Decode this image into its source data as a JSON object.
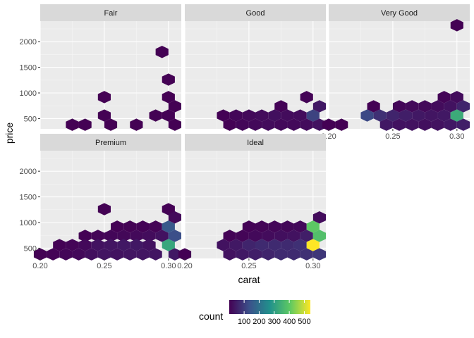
{
  "chart_data": {
    "type": "hexbin",
    "xlabel": "carat",
    "ylabel": "price",
    "xlim": [
      0.2,
      0.31
    ],
    "ylim": [
      300,
      2400
    ],
    "x_ticks": [
      0.2,
      0.25,
      0.3
    ],
    "x_tick_labels": [
      "0.20",
      "0.25",
      "0.30"
    ],
    "y_ticks": [
      500,
      1000,
      1500,
      2000
    ],
    "y_tick_labels": [
      "500",
      "1000",
      "1500",
      "2000"
    ],
    "legend": {
      "title": "count",
      "ticks": [
        100,
        200,
        300,
        400,
        500
      ],
      "tick_labels": [
        "100",
        "200",
        "300",
        "400",
        "500"
      ],
      "range": [
        1,
        540
      ],
      "placement": "bottom"
    },
    "panels": [
      {
        "name": "Fair",
        "hexes": [
          {
            "x": 0.225,
            "y": 380,
            "count": 2
          },
          {
            "x": 0.235,
            "y": 380,
            "count": 2
          },
          {
            "x": 0.25,
            "y": 920,
            "count": 2
          },
          {
            "x": 0.25,
            "y": 560,
            "count": 2
          },
          {
            "x": 0.255,
            "y": 380,
            "count": 2
          },
          {
            "x": 0.275,
            "y": 380,
            "count": 2
          },
          {
            "x": 0.29,
            "y": 560,
            "count": 2
          },
          {
            "x": 0.295,
            "y": 1800,
            "count": 2
          },
          {
            "x": 0.3,
            "y": 1260,
            "count": 2
          },
          {
            "x": 0.3,
            "y": 920,
            "count": 2
          },
          {
            "x": 0.3,
            "y": 560,
            "count": 4
          },
          {
            "x": 0.305,
            "y": 740,
            "count": 2
          },
          {
            "x": 0.305,
            "y": 380,
            "count": 2
          }
        ]
      },
      {
        "name": "Good",
        "hexes": [
          {
            "x": 0.23,
            "y": 560,
            "count": 3
          },
          {
            "x": 0.235,
            "y": 380,
            "count": 3
          },
          {
            "x": 0.24,
            "y": 560,
            "count": 10
          },
          {
            "x": 0.245,
            "y": 380,
            "count": 10
          },
          {
            "x": 0.25,
            "y": 560,
            "count": 15
          },
          {
            "x": 0.255,
            "y": 380,
            "count": 15
          },
          {
            "x": 0.26,
            "y": 560,
            "count": 20
          },
          {
            "x": 0.265,
            "y": 380,
            "count": 20
          },
          {
            "x": 0.27,
            "y": 560,
            "count": 25
          },
          {
            "x": 0.275,
            "y": 740,
            "count": 5
          },
          {
            "x": 0.275,
            "y": 380,
            "count": 15
          },
          {
            "x": 0.28,
            "y": 560,
            "count": 20
          },
          {
            "x": 0.285,
            "y": 380,
            "count": 15
          },
          {
            "x": 0.29,
            "y": 560,
            "count": 20
          },
          {
            "x": 0.295,
            "y": 920,
            "count": 5
          },
          {
            "x": 0.295,
            "y": 380,
            "count": 20
          },
          {
            "x": 0.3,
            "y": 560,
            "count": 110
          },
          {
            "x": 0.305,
            "y": 740,
            "count": 40
          },
          {
            "x": 0.305,
            "y": 380,
            "count": 30
          }
        ]
      },
      {
        "name": "Very Good",
        "hexes": [
          {
            "x": 0.2,
            "y": 380,
            "count": 1
          },
          {
            "x": 0.21,
            "y": 380,
            "count": 1
          },
          {
            "x": 0.23,
            "y": 560,
            "count": 120
          },
          {
            "x": 0.235,
            "y": 740,
            "count": 3
          },
          {
            "x": 0.24,
            "y": 560,
            "count": 80
          },
          {
            "x": 0.245,
            "y": 380,
            "count": 40
          },
          {
            "x": 0.25,
            "y": 560,
            "count": 60
          },
          {
            "x": 0.255,
            "y": 740,
            "count": 10
          },
          {
            "x": 0.255,
            "y": 380,
            "count": 30
          },
          {
            "x": 0.26,
            "y": 560,
            "count": 50
          },
          {
            "x": 0.265,
            "y": 740,
            "count": 15
          },
          {
            "x": 0.265,
            "y": 380,
            "count": 30
          },
          {
            "x": 0.27,
            "y": 560,
            "count": 40
          },
          {
            "x": 0.275,
            "y": 740,
            "count": 15
          },
          {
            "x": 0.275,
            "y": 380,
            "count": 25
          },
          {
            "x": 0.28,
            "y": 560,
            "count": 35
          },
          {
            "x": 0.285,
            "y": 740,
            "count": 20
          },
          {
            "x": 0.285,
            "y": 380,
            "count": 30
          },
          {
            "x": 0.29,
            "y": 920,
            "count": 8
          },
          {
            "x": 0.29,
            "y": 560,
            "count": 40
          },
          {
            "x": 0.295,
            "y": 740,
            "count": 30
          },
          {
            "x": 0.295,
            "y": 380,
            "count": 40
          },
          {
            "x": 0.3,
            "y": 2320,
            "count": 2
          },
          {
            "x": 0.3,
            "y": 920,
            "count": 20
          },
          {
            "x": 0.3,
            "y": 560,
            "count": 330
          },
          {
            "x": 0.305,
            "y": 740,
            "count": 60
          },
          {
            "x": 0.305,
            "y": 380,
            "count": 50
          }
        ]
      },
      {
        "name": "Premium",
        "hexes": [
          {
            "x": 0.2,
            "y": 380,
            "count": 4
          },
          {
            "x": 0.21,
            "y": 380,
            "count": 6
          },
          {
            "x": 0.215,
            "y": 560,
            "count": 3
          },
          {
            "x": 0.22,
            "y": 380,
            "count": 10
          },
          {
            "x": 0.225,
            "y": 560,
            "count": 8
          },
          {
            "x": 0.23,
            "y": 380,
            "count": 15
          },
          {
            "x": 0.235,
            "y": 740,
            "count": 3
          },
          {
            "x": 0.235,
            "y": 560,
            "count": 15
          },
          {
            "x": 0.24,
            "y": 380,
            "count": 25
          },
          {
            "x": 0.245,
            "y": 740,
            "count": 8
          },
          {
            "x": 0.245,
            "y": 560,
            "count": 30
          },
          {
            "x": 0.25,
            "y": 1260,
            "count": 2
          },
          {
            "x": 0.25,
            "y": 380,
            "count": 35
          },
          {
            "x": 0.255,
            "y": 740,
            "count": 10
          },
          {
            "x": 0.255,
            "y": 560,
            "count": 35
          },
          {
            "x": 0.26,
            "y": 920,
            "count": 3
          },
          {
            "x": 0.26,
            "y": 380,
            "count": 30
          },
          {
            "x": 0.265,
            "y": 740,
            "count": 12
          },
          {
            "x": 0.265,
            "y": 560,
            "count": 40
          },
          {
            "x": 0.27,
            "y": 920,
            "count": 4
          },
          {
            "x": 0.27,
            "y": 380,
            "count": 35
          },
          {
            "x": 0.275,
            "y": 740,
            "count": 15
          },
          {
            "x": 0.275,
            "y": 560,
            "count": 40
          },
          {
            "x": 0.28,
            "y": 920,
            "count": 5
          },
          {
            "x": 0.28,
            "y": 380,
            "count": 35
          },
          {
            "x": 0.285,
            "y": 740,
            "count": 20
          },
          {
            "x": 0.285,
            "y": 560,
            "count": 30
          },
          {
            "x": 0.29,
            "y": 920,
            "count": 6
          },
          {
            "x": 0.29,
            "y": 380,
            "count": 35
          },
          {
            "x": 0.295,
            "y": 740,
            "count": 30
          },
          {
            "x": 0.3,
            "y": 1260,
            "count": 3
          },
          {
            "x": 0.3,
            "y": 920,
            "count": 150
          },
          {
            "x": 0.3,
            "y": 560,
            "count": 320
          },
          {
            "x": 0.305,
            "y": 1100,
            "count": 15
          },
          {
            "x": 0.305,
            "y": 740,
            "count": 130
          },
          {
            "x": 0.305,
            "y": 380,
            "count": 40
          }
        ]
      },
      {
        "name": "Ideal",
        "hexes": [
          {
            "x": 0.2,
            "y": 380,
            "count": 1
          },
          {
            "x": 0.23,
            "y": 560,
            "count": 30
          },
          {
            "x": 0.235,
            "y": 740,
            "count": 5
          },
          {
            "x": 0.235,
            "y": 380,
            "count": 30
          },
          {
            "x": 0.24,
            "y": 560,
            "count": 40
          },
          {
            "x": 0.245,
            "y": 740,
            "count": 8
          },
          {
            "x": 0.245,
            "y": 380,
            "count": 40
          },
          {
            "x": 0.25,
            "y": 920,
            "count": 5
          },
          {
            "x": 0.25,
            "y": 560,
            "count": 60
          },
          {
            "x": 0.255,
            "y": 740,
            "count": 15
          },
          {
            "x": 0.255,
            "y": 380,
            "count": 50
          },
          {
            "x": 0.26,
            "y": 920,
            "count": 8
          },
          {
            "x": 0.26,
            "y": 560,
            "count": 70
          },
          {
            "x": 0.265,
            "y": 740,
            "count": 20
          },
          {
            "x": 0.265,
            "y": 380,
            "count": 60
          },
          {
            "x": 0.27,
            "y": 920,
            "count": 10
          },
          {
            "x": 0.27,
            "y": 560,
            "count": 70
          },
          {
            "x": 0.275,
            "y": 740,
            "count": 25
          },
          {
            "x": 0.275,
            "y": 380,
            "count": 70
          },
          {
            "x": 0.28,
            "y": 920,
            "count": 12
          },
          {
            "x": 0.28,
            "y": 560,
            "count": 70
          },
          {
            "x": 0.285,
            "y": 740,
            "count": 30
          },
          {
            "x": 0.285,
            "y": 380,
            "count": 70
          },
          {
            "x": 0.29,
            "y": 920,
            "count": 15
          },
          {
            "x": 0.29,
            "y": 560,
            "count": 80
          },
          {
            "x": 0.295,
            "y": 740,
            "count": 50
          },
          {
            "x": 0.295,
            "y": 380,
            "count": 80
          },
          {
            "x": 0.3,
            "y": 920,
            "count": 400
          },
          {
            "x": 0.3,
            "y": 560,
            "count": 540
          },
          {
            "x": 0.305,
            "y": 1100,
            "count": 20
          },
          {
            "x": 0.305,
            "y": 740,
            "count": 380
          },
          {
            "x": 0.305,
            "y": 380,
            "count": 90
          }
        ]
      }
    ]
  }
}
